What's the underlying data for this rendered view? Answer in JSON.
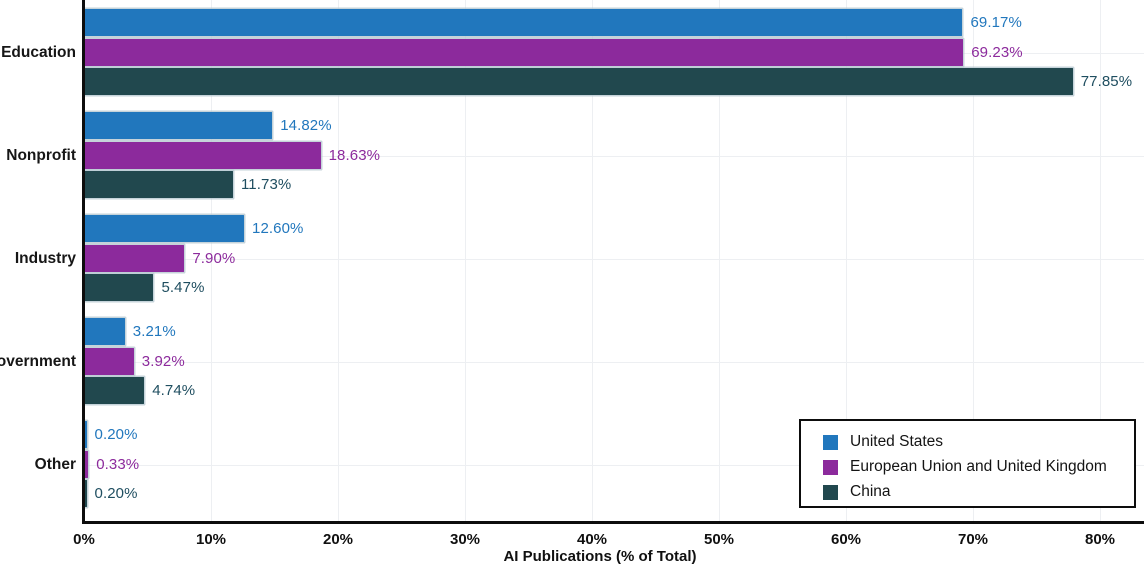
{
  "chart_data": {
    "type": "bar",
    "orientation": "horizontal",
    "title": "",
    "xlabel": "AI Publications (% of Total)",
    "ylabel": "",
    "categories": [
      "Education",
      "Nonprofit",
      "Industry",
      "Government",
      "Other"
    ],
    "series": [
      {
        "name": "United States",
        "color": "#2177bd",
        "label_color": "#2177bd",
        "values": [
          69.17,
          14.82,
          12.6,
          3.21,
          0.2
        ],
        "labels": [
          "69.17%",
          "14.82%",
          "12.60%",
          "3.21%",
          "0.20%"
        ]
      },
      {
        "name": "European Union and United Kingdom",
        "color": "#8c2a9c",
        "label_color": "#8c2a9c",
        "values": [
          69.23,
          18.63,
          7.9,
          3.92,
          0.33
        ],
        "labels": [
          "69.23%",
          "18.63%",
          "7.90%",
          "3.92%",
          "0.33%"
        ]
      },
      {
        "name": "China",
        "color": "#21484e",
        "label_color": "#1f4e60",
        "values": [
          77.85,
          11.73,
          5.47,
          4.74,
          0.2
        ],
        "labels": [
          "77.85%",
          "11.73%",
          "5.47%",
          "4.74%",
          "0.20%"
        ]
      }
    ],
    "x_ticks": [
      {
        "value": 0,
        "label": "0%"
      },
      {
        "value": 10,
        "label": "10%"
      },
      {
        "value": 20,
        "label": "20%"
      },
      {
        "value": 30,
        "label": "30%"
      },
      {
        "value": 40,
        "label": "40%"
      },
      {
        "value": 50,
        "label": "50%"
      },
      {
        "value": 60,
        "label": "60%"
      },
      {
        "value": 70,
        "label": "70%"
      },
      {
        "value": 80,
        "label": "80%"
      }
    ],
    "xlim": [
      0,
      83.5
    ],
    "grid": true,
    "legend": {
      "position": "lower right",
      "frame": true,
      "items": [
        "United States",
        "European Union and United Kingdom",
        "China"
      ]
    },
    "axis_color": "#0d0d0d",
    "gridline_color": "#edeff2",
    "background_color": "#ffffff"
  }
}
